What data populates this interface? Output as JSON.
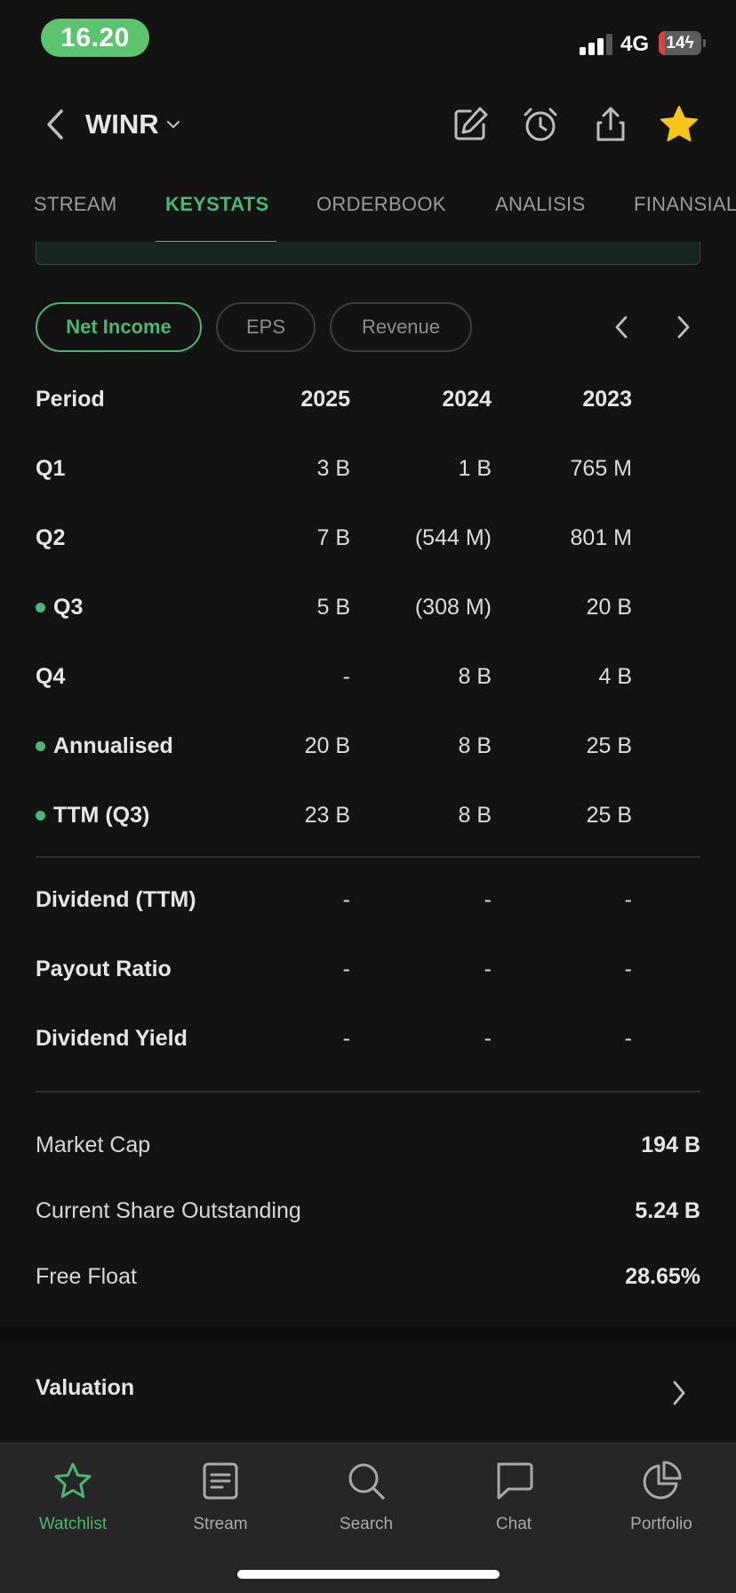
{
  "status_bar": {
    "time": "16.20",
    "network": "4G",
    "battery_level": "14",
    "battery_fraction": 0.14
  },
  "header": {
    "ticker": "WINR"
  },
  "tabs": [
    {
      "label": "STREAM",
      "active": false
    },
    {
      "label": "KEYSTATS",
      "active": true
    },
    {
      "label": "ORDERBOOK",
      "active": false
    },
    {
      "label": "ANALISIS",
      "active": false
    },
    {
      "label": "FINANSIAL",
      "active": false
    }
  ],
  "chips": [
    {
      "label": "Net Income",
      "active": true
    },
    {
      "label": "EPS",
      "active": false
    },
    {
      "label": "Revenue",
      "active": false
    }
  ],
  "table": {
    "header": {
      "label": "Period",
      "cols": [
        "2025",
        "2024",
        "2023"
      ]
    },
    "rows": [
      {
        "label": "Q1",
        "values": [
          "3 B",
          "1 B",
          "765 M"
        ],
        "dot": false
      },
      {
        "label": "Q2",
        "values": [
          "7 B",
          "(544 M)",
          "801 M"
        ],
        "dot": false
      },
      {
        "label": "Q3",
        "values": [
          "5 B",
          "(308 M)",
          "20 B"
        ],
        "dot": true
      },
      {
        "label": "Q4",
        "values": [
          "-",
          "8 B",
          "4 B"
        ],
        "dot": false
      },
      {
        "label": "Annualised",
        "values": [
          "20 B",
          "8 B",
          "25 B"
        ],
        "dot": true
      },
      {
        "label": "TTM (Q3)",
        "values": [
          "23 B",
          "8 B",
          "25 B"
        ],
        "dot": true
      }
    ],
    "dividend_rows": [
      {
        "label": "Dividend (TTM)",
        "values": [
          "-",
          "-",
          "-"
        ]
      },
      {
        "label": "Payout Ratio",
        "values": [
          "-",
          "-",
          "-"
        ]
      },
      {
        "label": "Dividend Yield",
        "values": [
          "-",
          "-",
          "-"
        ]
      }
    ]
  },
  "summary": [
    {
      "label": "Market Cap",
      "value": "194 B"
    },
    {
      "label": "Current Share Outstanding",
      "value": "5.24 B"
    },
    {
      "label": "Free Float",
      "value": "28.65%"
    }
  ],
  "valuation": {
    "label": "Valuation"
  },
  "bottom_nav": [
    {
      "label": "Watchlist",
      "icon": "star-outline-icon",
      "active": true
    },
    {
      "label": "Stream",
      "icon": "document-icon",
      "active": false
    },
    {
      "label": "Search",
      "icon": "search-icon",
      "active": false
    },
    {
      "label": "Chat",
      "icon": "chat-bubble-icon",
      "active": false
    },
    {
      "label": "Portfolio",
      "icon": "pie-chart-icon",
      "active": false
    }
  ],
  "colors": {
    "accent": "#4eb574",
    "background": "#131313",
    "favorite_star": "#f5c518",
    "time_pill": "#5cc46e",
    "battery_low": "#e0403a"
  }
}
